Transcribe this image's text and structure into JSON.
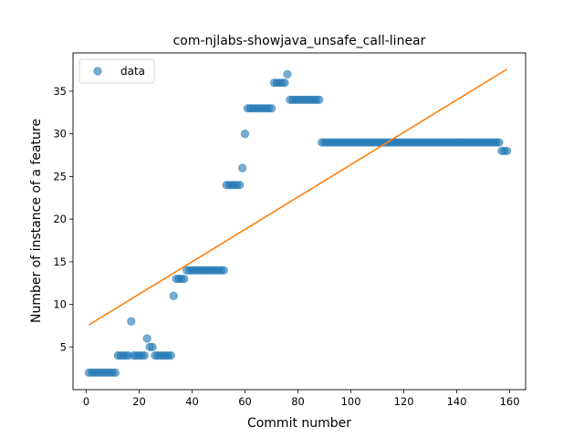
{
  "chart_data": {
    "type": "scatter",
    "title": "com-njlabs-showjava_unsafe_call-linear",
    "xlabel": "Commit number",
    "ylabel": "Number of instance of a feature",
    "xlim": [
      -5,
      166
    ],
    "ylim": [
      0,
      39.5
    ],
    "xticks": [
      0,
      20,
      40,
      60,
      80,
      100,
      120,
      140,
      160
    ],
    "yticks": [
      5,
      10,
      15,
      20,
      25,
      30,
      35
    ],
    "grid": false,
    "legend": {
      "position": "top-left",
      "entries": [
        "data"
      ]
    },
    "colors": {
      "data": "#1f77b4",
      "fit": "#ff7f0e"
    },
    "series": [
      {
        "name": "data",
        "kind": "scatter",
        "x": [
          1,
          2,
          3,
          4,
          5,
          6,
          7,
          8,
          9,
          10,
          11,
          12,
          13,
          14,
          15,
          16,
          17,
          18,
          19,
          20,
          21,
          22,
          23,
          24,
          25,
          26,
          27,
          28,
          29,
          30,
          31,
          32,
          33,
          34,
          35,
          36,
          37,
          38,
          39,
          40,
          41,
          42,
          43,
          44,
          45,
          46,
          47,
          48,
          49,
          50,
          51,
          52,
          53,
          54,
          55,
          56,
          57,
          58,
          59,
          60,
          61,
          62,
          63,
          64,
          65,
          66,
          67,
          68,
          69,
          70,
          71,
          72,
          73,
          74,
          75,
          76,
          77,
          78,
          79,
          80,
          81,
          82,
          83,
          84,
          85,
          86,
          87,
          88,
          89,
          90,
          91,
          92,
          93,
          94,
          95,
          96,
          97,
          98,
          99,
          100,
          101,
          102,
          103,
          104,
          105,
          106,
          107,
          108,
          109,
          110,
          111,
          112,
          113,
          114,
          115,
          116,
          117,
          118,
          119,
          120,
          121,
          122,
          123,
          124,
          125,
          126,
          127,
          128,
          129,
          130,
          131,
          132,
          133,
          134,
          135,
          136,
          137,
          138,
          139,
          140,
          141,
          142,
          143,
          144,
          145,
          146,
          147,
          148,
          149,
          150,
          151,
          152,
          153,
          154,
          155,
          156,
          157,
          158,
          159
        ],
        "y": [
          2,
          2,
          2,
          2,
          2,
          2,
          2,
          2,
          2,
          2,
          2,
          4,
          4,
          4,
          4,
          4,
          8,
          4,
          4,
          4,
          4,
          4,
          6,
          5,
          5,
          4,
          4,
          4,
          4,
          4,
          4,
          4,
          11,
          13,
          13,
          13,
          13,
          14,
          14,
          14,
          14,
          14,
          14,
          14,
          14,
          14,
          14,
          14,
          14,
          14,
          14,
          14,
          24,
          24,
          24,
          24,
          24,
          24,
          26,
          30,
          33,
          33,
          33,
          33,
          33,
          33,
          33,
          33,
          33,
          33,
          36,
          36,
          36,
          36,
          36,
          37,
          34,
          34,
          34,
          34,
          34,
          34,
          34,
          34,
          34,
          34,
          34,
          34,
          29,
          29,
          29,
          29,
          29,
          29,
          29,
          29,
          29,
          29,
          29,
          29,
          29,
          29,
          29,
          29,
          29,
          29,
          29,
          29,
          29,
          29,
          29,
          29,
          29,
          29,
          29,
          29,
          29,
          29,
          29,
          29,
          29,
          29,
          29,
          29,
          29,
          29,
          29,
          29,
          29,
          29,
          29,
          29,
          29,
          29,
          29,
          29,
          29,
          29,
          29,
          29,
          29,
          29,
          29,
          29,
          29,
          29,
          29,
          29,
          29,
          29,
          29,
          29,
          29,
          29,
          29,
          29,
          28,
          28,
          28
        ]
      },
      {
        "kind": "line",
        "x": [
          1,
          159
        ],
        "y": [
          7.6,
          37.6
        ]
      }
    ]
  }
}
